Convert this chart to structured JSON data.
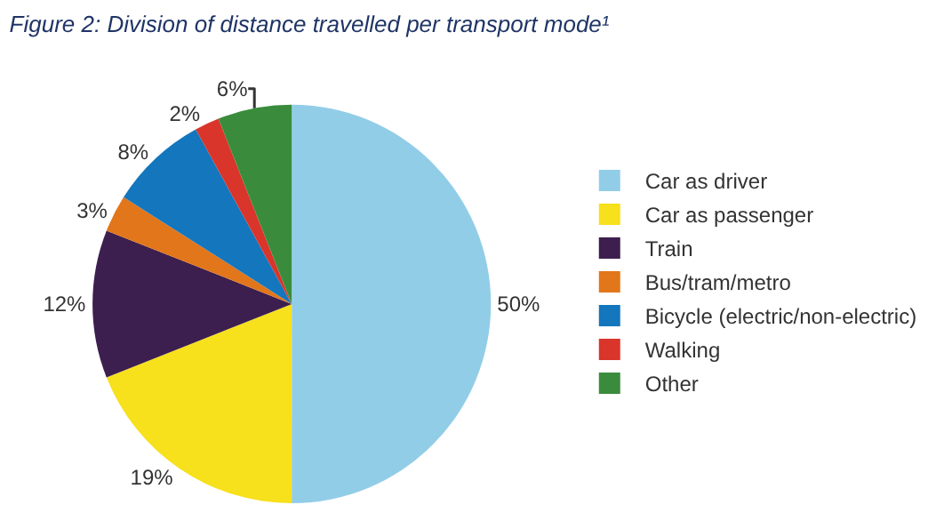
{
  "chart_data": {
    "type": "pie",
    "title": "Figure 2: Division of distance travelled per transport mode¹",
    "categories": [
      "Car as driver",
      "Car as passenger",
      "Train",
      "Bus/tram/metro",
      "Bicycle (electric/non-electric)",
      "Walking",
      "Other"
    ],
    "values": [
      50,
      19,
      12,
      3,
      8,
      2,
      6
    ],
    "value_labels": [
      "50%",
      "19%",
      "12%",
      "3%",
      "8%",
      "2%",
      "6%"
    ],
    "colors": [
      "#92cde8",
      "#f7e01c",
      "#3c1f4f",
      "#e2761b",
      "#1476bd",
      "#d9352a",
      "#3a8c3c"
    ],
    "legend": "right"
  }
}
